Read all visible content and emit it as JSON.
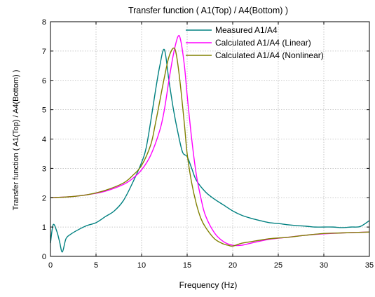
{
  "chart_data": {
    "type": "line",
    "title": "Transfer function ( A1(Top) / A4(Bottom) )",
    "xlabel": "Frequency (Hz)",
    "ylabel": "Transfer function ( A1(Top) / A4(Bottom) )",
    "xlim": [
      0,
      35
    ],
    "ylim": [
      0,
      8
    ],
    "xticks": [
      0,
      5,
      10,
      15,
      20,
      25,
      30,
      35
    ],
    "yticks": [
      0,
      1,
      2,
      3,
      4,
      5,
      6,
      7,
      8
    ],
    "grid": true,
    "legend_position": "top-right",
    "series": [
      {
        "name": "Measured A1/A4",
        "color": "#008080",
        "x": [
          0,
          0.3,
          0.7,
          1.0,
          1.3,
          1.7,
          2.2,
          3,
          4,
          5,
          6,
          7,
          8,
          9,
          10,
          10.5,
          11,
          11.5,
          12,
          12.5,
          13,
          13.5,
          14,
          14.5,
          15,
          15.5,
          16,
          17,
          18,
          19,
          20,
          21,
          22,
          23,
          24,
          25,
          26,
          27,
          28,
          29,
          30,
          31,
          32,
          33,
          34,
          35
        ],
        "y": [
          0.45,
          1.08,
          0.85,
          0.5,
          0.15,
          0.6,
          0.75,
          0.9,
          1.05,
          1.15,
          1.35,
          1.55,
          1.9,
          2.5,
          3.2,
          3.7,
          4.6,
          5.6,
          6.5,
          7.05,
          6.0,
          5.0,
          4.2,
          3.55,
          3.4,
          3.0,
          2.6,
          2.2,
          1.95,
          1.75,
          1.55,
          1.4,
          1.3,
          1.22,
          1.15,
          1.12,
          1.08,
          1.05,
          1.03,
          1.0,
          1.0,
          1.0,
          0.98,
          1.0,
          1.02,
          1.22
        ]
      },
      {
        "name": "Calculated A1/A4 (Linear)",
        "color": "#ff00ff",
        "x": [
          0,
          2,
          4,
          6,
          8,
          9,
          10,
          11,
          12,
          12.5,
          13,
          13.5,
          14,
          14.3,
          14.7,
          15,
          15.5,
          16,
          16.5,
          17,
          18,
          19,
          20,
          21,
          22,
          24,
          26,
          28,
          30,
          32,
          35
        ],
        "y": [
          2.0,
          2.03,
          2.1,
          2.22,
          2.45,
          2.65,
          2.95,
          3.45,
          4.3,
          5.0,
          6.0,
          6.9,
          7.5,
          7.35,
          6.5,
          5.5,
          4.0,
          2.8,
          2.0,
          1.4,
          0.8,
          0.5,
          0.38,
          0.38,
          0.45,
          0.58,
          0.65,
          0.72,
          0.77,
          0.8,
          0.83
        ]
      },
      {
        "name": "Calculated A1/A4 (Nonlinear)",
        "color": "#808000",
        "x": [
          0,
          2,
          4,
          6,
          8,
          9,
          10,
          11,
          11.5,
          12,
          12.5,
          13,
          13.5,
          13.8,
          14.2,
          14.7,
          15,
          15.5,
          16,
          16.5,
          17,
          18,
          19,
          19.5,
          20,
          21,
          22,
          24,
          26,
          28,
          30,
          32,
          35
        ],
        "y": [
          2.0,
          2.03,
          2.1,
          2.25,
          2.5,
          2.75,
          3.1,
          3.8,
          4.5,
          5.3,
          6.1,
          6.8,
          7.1,
          6.9,
          6.0,
          4.5,
          3.5,
          2.5,
          1.8,
          1.3,
          1.0,
          0.6,
          0.42,
          0.38,
          0.35,
          0.45,
          0.5,
          0.6,
          0.65,
          0.72,
          0.78,
          0.8,
          0.83
        ]
      }
    ]
  }
}
